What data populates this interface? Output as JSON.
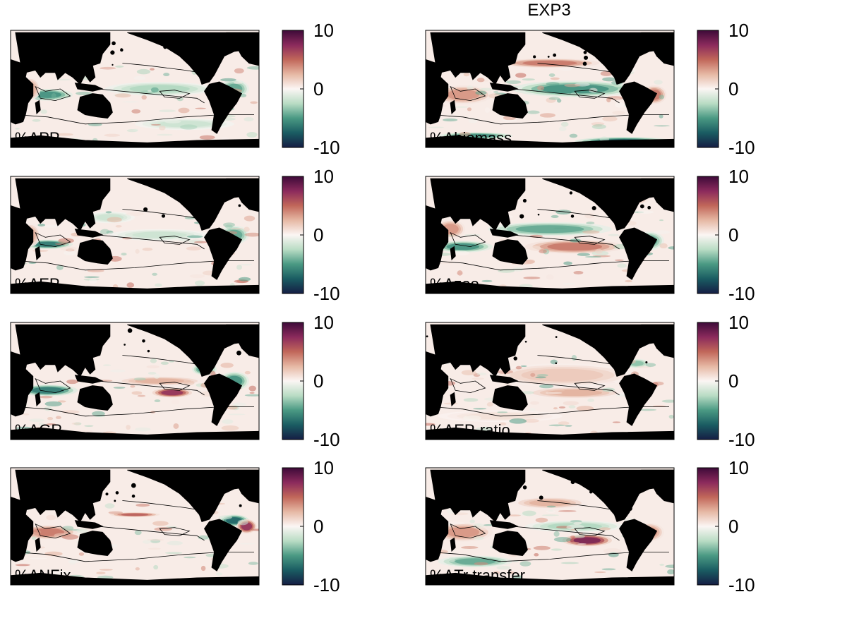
{
  "figure": {
    "title": "EXP3"
  },
  "colormap": {
    "name": "diverging-teal-white-red",
    "stops": [
      "#151d44",
      "#1a5c62",
      "#4a9983",
      "#b9dcc4",
      "#fbf6f4",
      "#e6b8a4",
      "#c1675a",
      "#8b2a5c",
      "#3d0a38"
    ],
    "land_color": "#000000",
    "contour_color": "#000000"
  },
  "chart_data": [
    {
      "type": "heatmap",
      "label": "%ΔPP",
      "colorbar": {
        "min": -10,
        "max": 10,
        "ticks": [
          "10",
          "0",
          "-10"
        ]
      },
      "pattern": "PP"
    },
    {
      "type": "heatmap",
      "label": "%Δbiomass",
      "colorbar": {
        "min": -10,
        "max": 10,
        "ticks": [
          "10",
          "0",
          "-10"
        ]
      },
      "pattern": "biomass"
    },
    {
      "type": "heatmap",
      "label": "%ΔEP",
      "colorbar": {
        "min": -10,
        "max": 10,
        "ticks": [
          "10",
          "0",
          "-10"
        ]
      },
      "pattern": "EP"
    },
    {
      "type": "heatmap",
      "label": "%Δzoo",
      "colorbar": {
        "min": -10,
        "max": 10,
        "ticks": [
          "10",
          "0",
          "-10"
        ]
      },
      "pattern": "zoo"
    },
    {
      "type": "heatmap",
      "label": "%ΔGR",
      "colorbar": {
        "min": -10,
        "max": 10,
        "ticks": [
          "10",
          "0",
          "-10"
        ]
      },
      "pattern": "GR"
    },
    {
      "type": "heatmap",
      "label": "%ΔEP-ratio",
      "colorbar": {
        "min": -10,
        "max": 10,
        "ticks": [
          "10",
          "0",
          "-10"
        ]
      },
      "pattern": "EPratio"
    },
    {
      "type": "heatmap",
      "label": "%ΔNFix",
      "colorbar": {
        "min": -10,
        "max": 10,
        "ticks": [
          "10",
          "0",
          "-10"
        ]
      },
      "pattern": "NFix"
    },
    {
      "type": "heatmap",
      "label": "%ΔTr transfer",
      "colorbar": {
        "min": -10,
        "max": 10,
        "ticks": [
          "10",
          "0",
          "-10"
        ]
      },
      "pattern": "Tr"
    }
  ]
}
